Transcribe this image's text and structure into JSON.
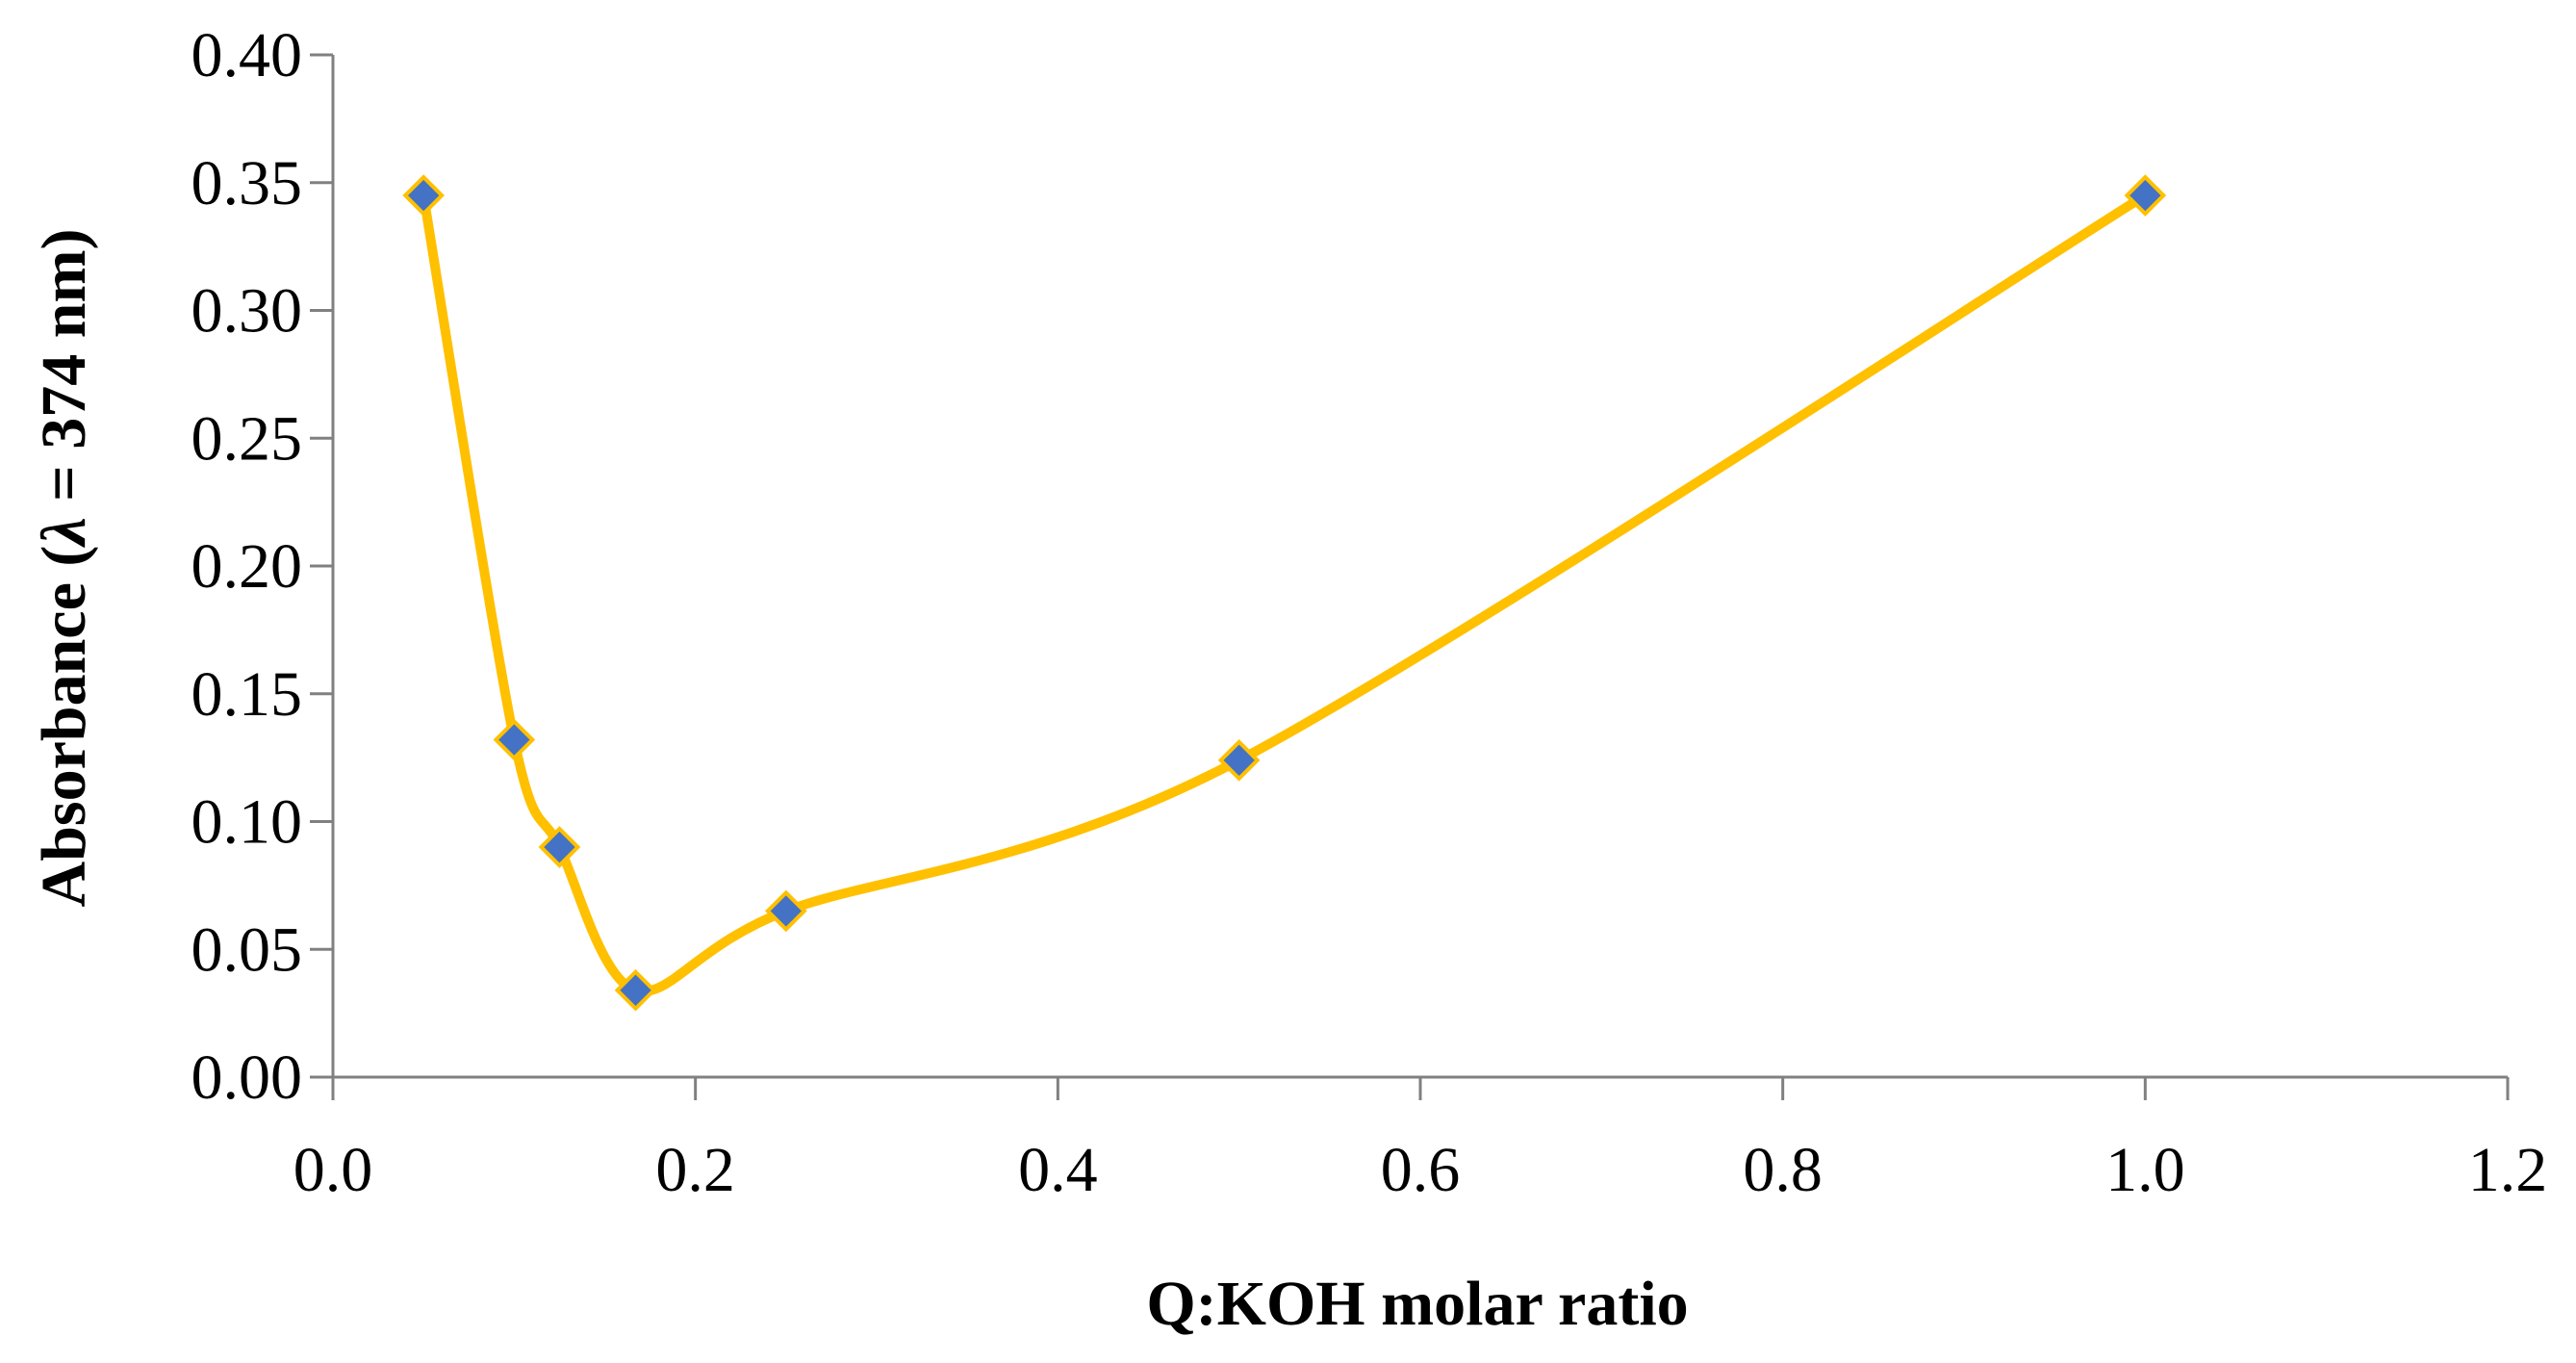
{
  "chart_data": {
    "type": "line",
    "title": "",
    "xlabel": "Q:KOH molar ratio",
    "ylabel_parts": [
      "Absorbance (",
      "λ",
      " = 374 nm)"
    ],
    "xlim": [
      0,
      1.2
    ],
    "ylim": [
      0,
      0.4
    ],
    "x_ticks": [
      "0.0",
      "0.2",
      "0.4",
      "0.6",
      "0.8",
      "1.0",
      "1.2"
    ],
    "y_ticks": [
      "0.00",
      "0.05",
      "0.10",
      "0.15",
      "0.20",
      "0.25",
      "0.30",
      "0.35",
      "0.40"
    ],
    "grid": false,
    "smooth": true,
    "series": [
      {
        "x": [
          0.05,
          0.1,
          0.125,
          0.167,
          0.25,
          0.5,
          1.0
        ],
        "y": [
          0.345,
          0.132,
          0.09,
          0.034,
          0.065,
          0.124,
          0.345
        ],
        "line_color": "#FFC000",
        "marker": "diamond",
        "marker_fill": "#4472C4",
        "marker_edge": "#FFC000"
      }
    ]
  }
}
